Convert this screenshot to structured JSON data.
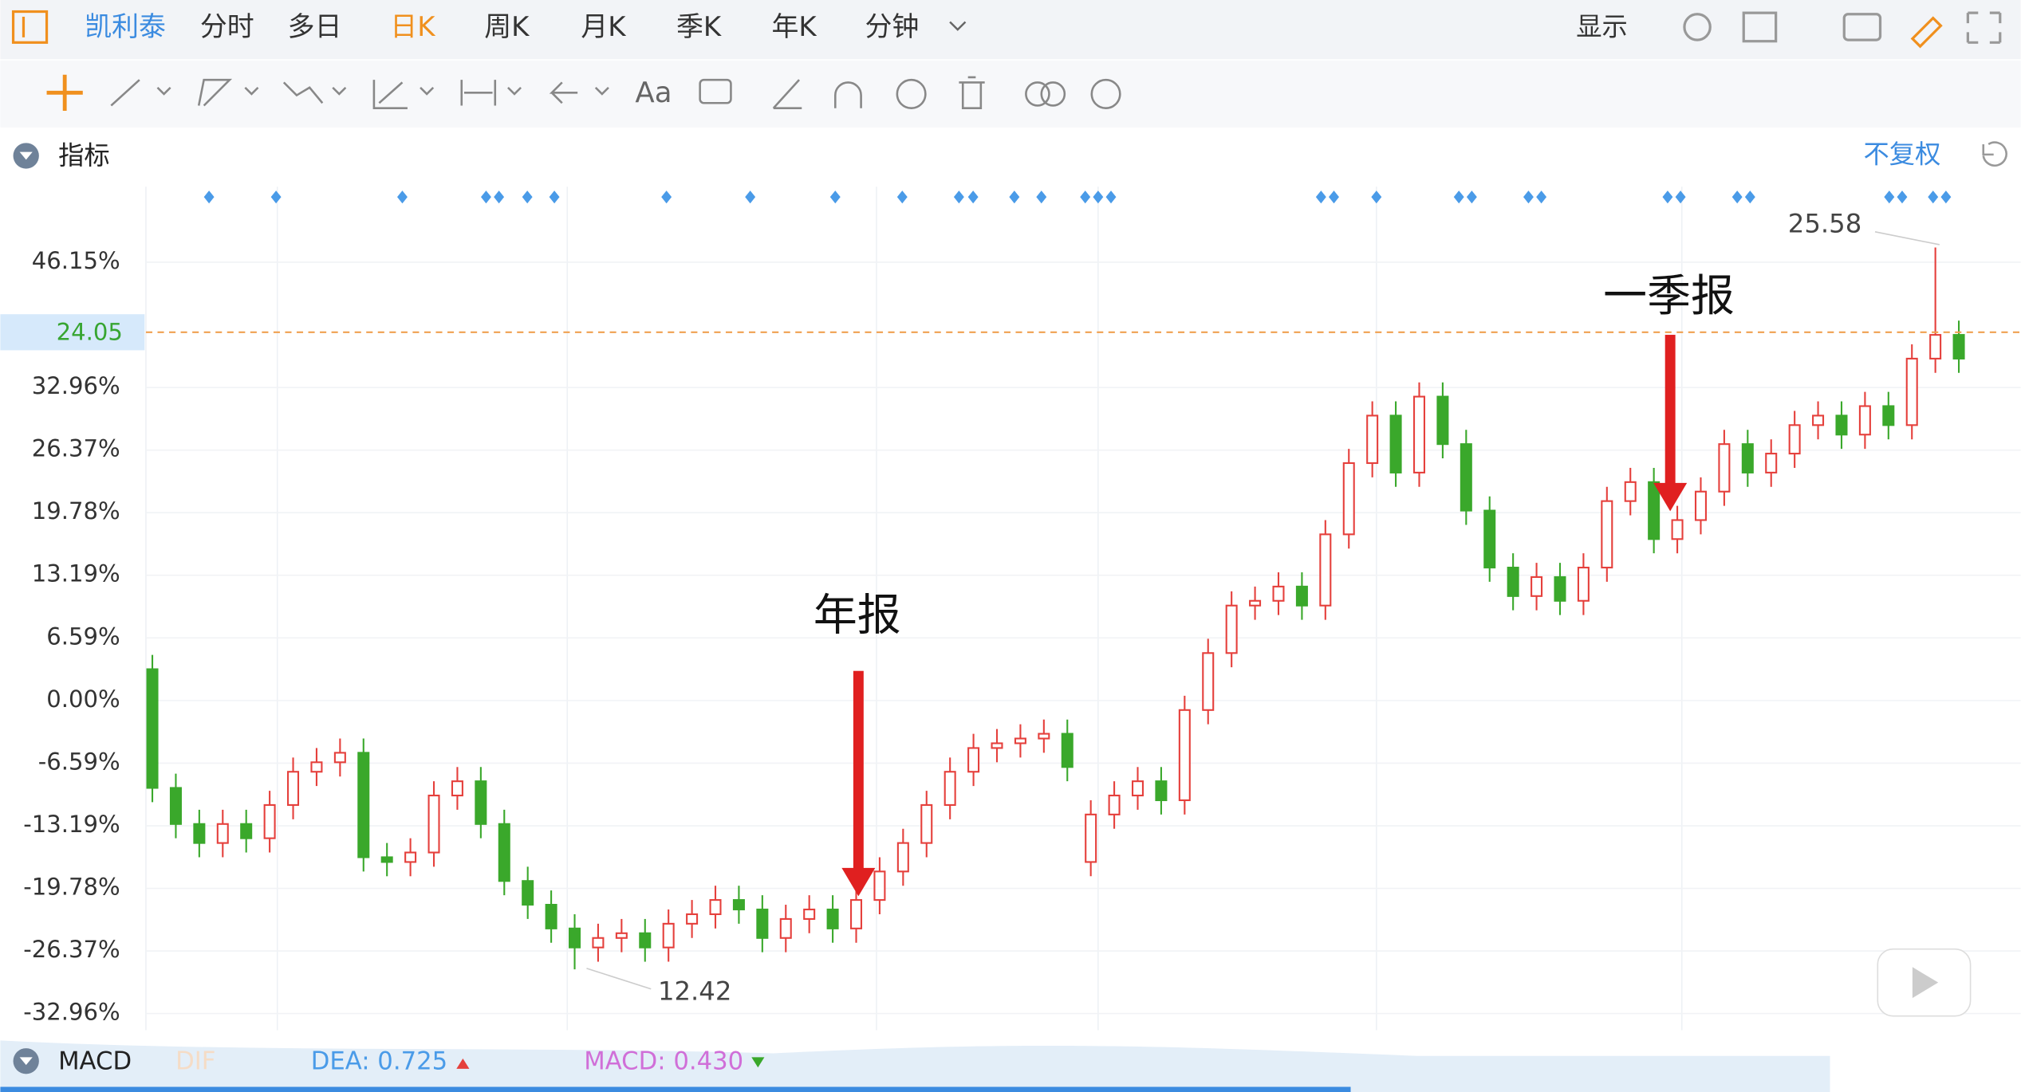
{
  "tabs": [
    "凯利泰",
    "分时",
    "多日",
    "日K",
    "周K",
    "月K",
    "季K",
    "年K",
    "分钟"
  ],
  "display": "显示",
  "text_tool": "Aa",
  "indicator_label": "指标",
  "adjust": "不复权",
  "chart_data": {
    "type": "candlestick",
    "open": [
      3.3,
      -9.2,
      -13,
      -15,
      -13,
      -14.5,
      -11,
      -7.5,
      -6.5,
      -5.5,
      -16.5,
      -17,
      -16,
      -10,
      -8.5,
      -13,
      -19,
      -21.5,
      -24,
      -26,
      -25,
      -24.5,
      -26,
      -23.5,
      -22.5,
      -21,
      -22,
      -25,
      -23,
      -22,
      -24,
      -21,
      -18,
      -15,
      -11,
      -7.5,
      -5,
      -4.5,
      -4,
      -3.5,
      -17,
      -12,
      -10,
      -8.5,
      -10.5,
      -1,
      5,
      10,
      10.5,
      12,
      10,
      17.5,
      25,
      30,
      24,
      32,
      27,
      20,
      14,
      11,
      13,
      10.5,
      14,
      21,
      23,
      17,
      19,
      22,
      27,
      24,
      26,
      29,
      30,
      28,
      31,
      29,
      36,
      38.5
    ],
    "high": [
      4.8,
      -7.7,
      -11.5,
      -11.5,
      -11.5,
      -9.5,
      -6,
      -5,
      -4,
      -4,
      -15,
      -14.5,
      -8.5,
      -7,
      -7,
      -11.5,
      -17.5,
      -20,
      -22.5,
      -23.5,
      -23,
      -23,
      -22,
      -21,
      -19.5,
      -19.5,
      -20.5,
      -21.5,
      -20.5,
      -20.5,
      -19.5,
      -16.5,
      -13.5,
      -9.5,
      -6,
      -3.5,
      -3,
      -2.5,
      -2,
      -2,
      -10.5,
      -8.5,
      -7,
      -7,
      0.5,
      6.5,
      11.5,
      12,
      13.5,
      13.5,
      19,
      26.5,
      31.5,
      31.5,
      33.5,
      33.5,
      28.5,
      21.5,
      15.5,
      14.5,
      14.5,
      15.5,
      22.5,
      24.5,
      24.5,
      20.5,
      23.5,
      28.5,
      28.5,
      27.5,
      30.5,
      31.5,
      31.5,
      32.5,
      32.5,
      37.5,
      47.7,
      40
    ],
    "low": [
      -10.7,
      -14.5,
      -16.5,
      -16.5,
      -16,
      -16,
      -12.5,
      -9,
      -8,
      -18,
      -18.5,
      -18.5,
      -17.5,
      -11.5,
      -14.5,
      -20.5,
      -23,
      -25.5,
      -28.3,
      -27.5,
      -26.5,
      -27.5,
      -27.5,
      -25,
      -24,
      -23.5,
      -26.5,
      -26.5,
      -24.5,
      -25.5,
      -25.5,
      -22.5,
      -19.5,
      -16.5,
      -12.5,
      -9,
      -6.5,
      -6,
      -5.5,
      -8.5,
      -18.5,
      -13.5,
      -11.5,
      -12,
      -12,
      -2.5,
      3.5,
      8.5,
      9,
      8.5,
      8.5,
      16,
      23.5,
      22.5,
      22.5,
      25.5,
      18.5,
      12.5,
      9.5,
      9.5,
      9,
      9,
      12.5,
      19.5,
      15.5,
      15.5,
      17.5,
      20.5,
      22.5,
      22.5,
      24.5,
      27.5,
      26.5,
      26.5,
      27.5,
      27.5,
      34.5,
      34.5
    ],
    "close": [
      -9.2,
      -13,
      -15,
      -13,
      -14.5,
      -11,
      -7.5,
      -6.5,
      -5.5,
      -16.5,
      -17,
      -16,
      -10,
      -8.5,
      -13,
      -19,
      -21.5,
      -24,
      -26,
      -25,
      -24.5,
      -26,
      -23.5,
      -22.5,
      -21,
      -22,
      -25,
      -23,
      -22,
      -24,
      -21,
      -18,
      -15,
      -11,
      -7.5,
      -5,
      -4.5,
      -4,
      -3.5,
      -7,
      -12,
      -10,
      -8.5,
      -10.5,
      -1,
      5,
      10,
      10.5,
      12,
      10,
      17.5,
      25,
      30,
      24,
      32,
      27,
      20,
      14,
      11,
      13,
      10.5,
      14,
      21,
      23,
      17,
      19,
      22,
      27,
      24,
      26,
      29,
      30,
      28,
      31,
      29,
      36,
      38.5,
      36
    ],
    "up_color": "#e5403c",
    "down_color": "#3aa82b",
    "ylim": [
      -34.71,
      54.1
    ],
    "yticks": [
      {
        "value": 46.15,
        "label": "46.15%"
      },
      {
        "value": 32.96,
        "label": "32.96%"
      },
      {
        "value": 26.37,
        "label": "26.37%"
      },
      {
        "value": 19.78,
        "label": "19.78%"
      },
      {
        "value": 13.19,
        "label": "13.19%"
      },
      {
        "value": 6.59,
        "label": "6.59%"
      },
      {
        "value": 0,
        "label": "0.00%"
      },
      {
        "value": -6.59,
        "label": "-6.59%"
      },
      {
        "value": -13.19,
        "label": "-13.19%"
      },
      {
        "value": -19.78,
        "label": "-19.78%"
      },
      {
        "value": -26.37,
        "label": "-26.37%"
      },
      {
        "value": -32.96,
        "label": "-32.96%"
      }
    ],
    "price_line_label": "24.05",
    "high_label": "25.58",
    "low_label": "12.42",
    "annotations": [
      "年报",
      "一季报"
    ]
  },
  "macd_bar": {
    "name": "MACD",
    "dif": "DIF",
    "dea": "DEA: 0.725",
    "macd": "MACD: 0.430"
  }
}
